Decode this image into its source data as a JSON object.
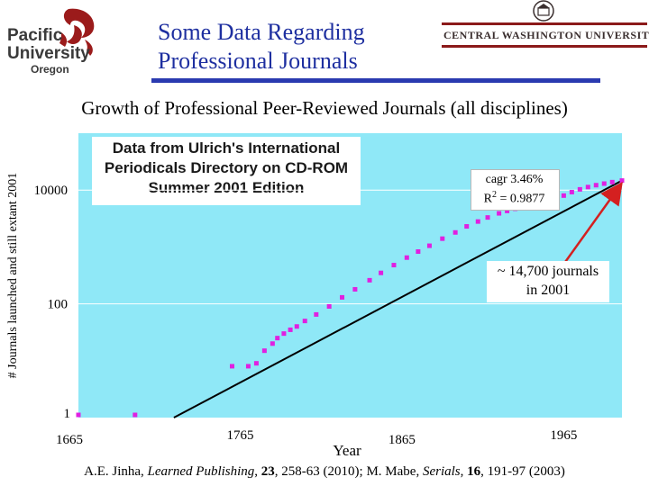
{
  "header": {
    "title_line1": "Some Data Regarding",
    "title_line2": "Professional Journals",
    "left_logo": {
      "line1": "Pacific",
      "line2": "University",
      "line3": "Oregon",
      "color": "#9b1b1b"
    },
    "right_logo": {
      "name": "CENTRAL WASHINGTON UNIVERSITY",
      "color": "#8b1a1a"
    },
    "title_color": "#1e2fa0",
    "rule_color": "#2a3ab0"
  },
  "chart_data": {
    "type": "scatter",
    "title": "Growth of Professional Peer-Reviewed Journals (all disciplines)",
    "xlabel": "Year",
    "ylabel": "# Journals launched and still extant 2001",
    "yscale": "log",
    "xlim": [
      1665,
      2001
    ],
    "ylim": [
      1,
      100000
    ],
    "x_ticks": [
      "1665",
      "1765",
      "1865",
      "1965"
    ],
    "y_ticks": [
      "1",
      "100",
      "10000"
    ],
    "plot_background": "#8fe8f7",
    "grid": "horizontal",
    "source_note": [
      "Data from Ulrich's International",
      "Periodicals Directory on CD-ROM",
      "Summer 2001 Edition"
    ],
    "fit": {
      "label_cagr": "cagr 3.46%",
      "label_r2": "R2 = 0.9877",
      "cagr": 3.46,
      "r2": 0.9877,
      "points": [
        [
          1724,
          1
        ],
        [
          2001,
          14700
        ]
      ],
      "color": "#000000"
    },
    "series": [
      {
        "name": "Journals",
        "color": "#e020e0",
        "points": [
          [
            1665,
            1
          ],
          [
            1700,
            1
          ],
          [
            1760,
            8
          ],
          [
            1770,
            8
          ],
          [
            1775,
            9
          ],
          [
            1780,
            15
          ],
          [
            1785,
            20
          ],
          [
            1788,
            25
          ],
          [
            1792,
            30
          ],
          [
            1796,
            35
          ],
          [
            1800,
            40
          ],
          [
            1805,
            50
          ],
          [
            1812,
            65
          ],
          [
            1820,
            90
          ],
          [
            1828,
            130
          ],
          [
            1836,
            180
          ],
          [
            1845,
            260
          ],
          [
            1852,
            350
          ],
          [
            1860,
            480
          ],
          [
            1868,
            650
          ],
          [
            1875,
            830
          ],
          [
            1882,
            1050
          ],
          [
            1890,
            1400
          ],
          [
            1898,
            1800
          ],
          [
            1905,
            2300
          ],
          [
            1912,
            2800
          ],
          [
            1918,
            3300
          ],
          [
            1925,
            3900
          ],
          [
            1930,
            4300
          ],
          [
            1935,
            4700
          ],
          [
            1940,
            5000
          ],
          [
            1945,
            5200
          ],
          [
            1950,
            5600
          ],
          [
            1955,
            6200
          ],
          [
            1960,
            7000
          ],
          [
            1965,
            8000
          ],
          [
            1970,
            9200
          ],
          [
            1975,
            10300
          ],
          [
            1980,
            11300
          ],
          [
            1985,
            12200
          ],
          [
            1990,
            13000
          ],
          [
            1995,
            13800
          ],
          [
            2001,
            14700
          ]
        ]
      }
    ],
    "annotation": {
      "line1": "~ 14,700 journals",
      "line2": "in 2001",
      "arrow_color": "#d42020"
    }
  },
  "citation": {
    "author": "A.E. Jinha, ",
    "journal1": "Learned Publishing",
    "sep1": ", ",
    "vol1": "23",
    "pages1": ", 258-63 (2010); M. Mabe, ",
    "journal2": "Serials",
    "sep2": ", ",
    "vol2": "16",
    "pages2": ", 191-97 (2003)"
  }
}
